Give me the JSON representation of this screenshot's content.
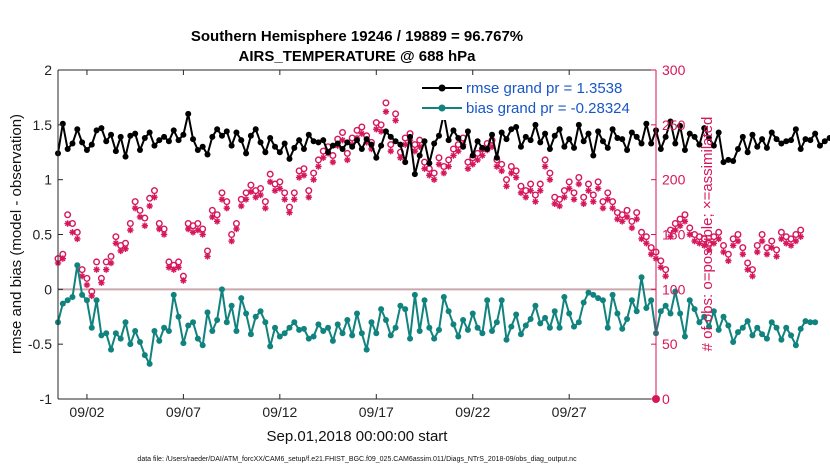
{
  "chart_data": {
    "type": "line",
    "title_lines": [
      "Southern Hemisphere 19246 / 19889 = 96.767%",
      "AIRS_TEMPERATURE @ 688 hPa"
    ],
    "xlabel": "Sep.01,2018 00:00:00 start",
    "ylabel": "rmse and bias (model - observation)",
    "y2label": "# of obs: o=possible; ×=assimilated",
    "footer": "data file: /Users/raeder/DAI/ATM_forcXX/CAM6_setup/f.e21.FHIST_BGC.f09_025.CAM6assim.011/Diags_NTrS_2018-09/obs_diag_output.nc",
    "xlim": [
      0.5,
      31.5
    ],
    "ylim": [
      -1,
      2
    ],
    "y2lim": [
      0,
      300
    ],
    "xticks": [
      2,
      7,
      12,
      17,
      22,
      27
    ],
    "xtick_labels": [
      "09/02",
      "09/07",
      "09/12",
      "09/17",
      "09/22",
      "09/27"
    ],
    "yticks": [
      -1,
      -0.5,
      0,
      0.5,
      1,
      1.5,
      2
    ],
    "ytick_labels": [
      "-1",
      "-0.5",
      "0",
      "0.5",
      "1",
      "1.5",
      "2"
    ],
    "y2ticks": [
      0,
      50,
      100,
      150,
      200,
      250,
      300
    ],
    "y2tick_labels": [
      "0",
      "50",
      "100",
      "150",
      "200",
      "250",
      "300"
    ],
    "legend_position": "top-right",
    "series": [
      {
        "name": "rmse grand pr = 1.3538",
        "color": "#000000",
        "start": 0.5,
        "step": 0.25,
        "values": [
          1.24,
          1.51,
          1.28,
          1.33,
          1.46,
          1.34,
          1.27,
          1.32,
          1.45,
          1.47,
          1.35,
          1.41,
          1.26,
          1.39,
          1.21,
          1.4,
          1.42,
          1.27,
          1.38,
          1.43,
          1.31,
          1.36,
          1.39,
          1.35,
          1.45,
          1.36,
          1.41,
          1.6,
          1.37,
          1.27,
          1.3,
          1.23,
          1.39,
          1.46,
          1.4,
          1.44,
          1.31,
          1.43,
          1.36,
          1.24,
          1.4,
          1.46,
          1.34,
          1.25,
          1.38,
          1.3,
          1.25,
          1.33,
          1.19,
          1.29,
          1.36,
          1.28,
          1.41,
          1.35,
          1.34,
          1.36,
          1.25,
          1.31,
          1.33,
          1.28,
          1.34,
          1.3,
          1.36,
          1.28,
          1.37,
          1.32,
          1.2,
          1.31,
          1.44,
          1.39,
          1.35,
          1.32,
          1.16,
          1.39,
          1.05,
          1.22,
          1.35,
          1.15,
          1.33,
          1.4,
          1.6,
          1.36,
          1.45,
          1.38,
          1.3,
          1.44,
          1.22,
          1.35,
          1.29,
          1.28,
          1.41,
          1.2,
          1.43,
          1.37,
          1.46,
          1.48,
          1.3,
          1.39,
          1.36,
          1.5,
          1.34,
          1.42,
          1.28,
          1.4,
          1.46,
          1.3,
          1.37,
          1.29,
          1.5,
          1.35,
          1.42,
          1.22,
          1.44,
          1.35,
          1.29,
          1.46,
          1.38,
          1.37,
          1.27,
          1.43,
          1.39,
          1.33,
          1.51,
          1.33,
          1.45,
          1.28,
          1.39,
          1.53,
          1.33,
          1.49,
          1.27,
          1.42,
          1.39,
          1.32,
          1.47,
          1.38,
          1.31,
          1.43,
          1.16,
          1.18,
          1.17,
          1.28,
          1.39,
          1.25,
          1.41,
          1.3,
          1.37,
          1.29,
          1.43,
          1.37,
          1.33,
          1.35,
          1.36,
          1.46,
          1.28,
          1.37,
          1.36,
          1.42,
          1.31,
          1.35,
          1.38,
          1.35,
          1.37
        ]
      },
      {
        "name": "bias grand pr = -0.28324",
        "color": "#11837e",
        "start": 0.5,
        "step": 0.25,
        "values": [
          -0.3,
          -0.13,
          -0.1,
          -0.07,
          0.22,
          -0.05,
          -0.1,
          -0.35,
          -0.1,
          -0.42,
          -0.4,
          -0.55,
          -0.4,
          -0.45,
          -0.3,
          -0.5,
          -0.38,
          -0.48,
          -0.6,
          -0.68,
          -0.38,
          -0.47,
          -0.35,
          -0.38,
          -0.05,
          -0.25,
          -0.49,
          -0.33,
          -0.3,
          -0.45,
          -0.51,
          -0.21,
          -0.38,
          -0.28,
          0.0,
          -0.3,
          -0.15,
          -0.38,
          -0.08,
          -0.22,
          -0.41,
          -0.25,
          -0.2,
          -0.3,
          -0.52,
          -0.35,
          -0.43,
          -0.4,
          -0.35,
          -0.3,
          -0.37,
          -0.36,
          -0.45,
          -0.43,
          -0.32,
          -0.38,
          -0.35,
          -0.47,
          -0.32,
          -0.4,
          -0.28,
          -0.42,
          -0.22,
          -0.4,
          -0.55,
          -0.3,
          -0.4,
          -0.18,
          -0.28,
          -0.42,
          -0.35,
          -0.15,
          -0.18,
          -0.45,
          -0.05,
          -0.38,
          -0.1,
          -0.35,
          -0.45,
          -0.37,
          -0.07,
          -0.2,
          -0.32,
          -0.43,
          -0.28,
          -0.37,
          -0.22,
          -0.35,
          -0.4,
          -0.1,
          -0.38,
          -0.3,
          -0.1,
          -0.46,
          -0.34,
          -0.23,
          -0.41,
          -0.33,
          -0.27,
          -0.15,
          -0.31,
          -0.26,
          -0.35,
          -0.2,
          -0.35,
          -0.07,
          -0.22,
          -0.34,
          -0.3,
          -0.12,
          -0.03,
          -0.05,
          -0.08,
          -0.1,
          -0.35,
          -0.05,
          -0.22,
          -0.36,
          -0.27,
          -0.1,
          -0.2,
          0.11,
          -0.17,
          -0.1,
          -0.4,
          -0.2,
          -0.15,
          -0.22,
          -0.02,
          -0.22,
          -0.43,
          -0.1,
          -0.18,
          -0.3,
          -0.25,
          -0.34,
          -0.2,
          -0.37,
          -0.25,
          -0.33,
          -0.48,
          -0.39,
          -0.35,
          -0.29,
          -0.42,
          -0.35,
          -0.41,
          -0.45,
          -0.3,
          -0.35,
          -0.46,
          -0.35,
          -0.42,
          -0.51,
          -0.36,
          -0.29,
          -0.3,
          -0.3
        ]
      }
    ],
    "obs_possible": {
      "name": "# possible",
      "marker": "o",
      "color": "#d6175b",
      "start": 0.5,
      "step": 0.25,
      "values": [
        128,
        132,
        168,
        160,
        152,
        118,
        110,
        98,
        125,
        110,
        125,
        130,
        148,
        140,
        142,
        160,
        180,
        172,
        165,
        183,
        190,
        160,
        155,
        125,
        122,
        125,
        112,
        160,
        158,
        160,
        155,
        135,
        172,
        168,
        188,
        180,
        150,
        160,
        182,
        188,
        195,
        190,
        192,
        180,
        205,
        196,
        198,
        188,
        175,
        188,
        208,
        210,
        190,
        206,
        218,
        226,
        230,
        222,
        237,
        243,
        224,
        238,
        245,
        248,
        240,
        234,
        252,
        250,
        270,
        232,
        260,
        225,
        238,
        242,
        232,
        236,
        216,
        210,
        206,
        220,
        212,
        218,
        228,
        232,
        238,
        216,
        220,
        224,
        228,
        233,
        236,
        218,
        214,
        200,
        212,
        208,
        194,
        190,
        196,
        186,
        196,
        218,
        206,
        184,
        182,
        190,
        198,
        188,
        202,
        184,
        196,
        186,
        198,
        180,
        188,
        180,
        170,
        168,
        172,
        162,
        170,
        152,
        148,
        138,
        134,
        126,
        118,
        154,
        160,
        164,
        168,
        156,
        150,
        148,
        146,
        142,
        148,
        152,
        140,
        132,
        146,
        150,
        138,
        124,
        118,
        140,
        150,
        138,
        144,
        136,
        152,
        148,
        146,
        150,
        154
      ]
    },
    "obs_assimilated": {
      "name": "# assimilated",
      "marker": "*",
      "color": "#d6175b",
      "start": 0.5,
      "step": 0.25,
      "values": [
        124,
        128,
        160,
        152,
        146,
        112,
        104,
        94,
        118,
        106,
        118,
        124,
        142,
        135,
        137,
        154,
        174,
        166,
        158,
        176,
        184,
        155,
        150,
        120,
        118,
        120,
        108,
        155,
        152,
        154,
        150,
        130,
        166,
        162,
        182,
        174,
        144,
        155,
        176,
        182,
        189,
        184,
        186,
        174,
        198,
        190,
        192,
        182,
        170,
        182,
        202,
        204,
        184,
        200,
        212,
        220,
        224,
        216,
        231,
        236,
        218,
        232,
        238,
        242,
        234,
        228,
        246,
        244,
        262,
        226,
        254,
        220,
        232,
        236,
        226,
        230,
        210,
        204,
        200,
        214,
        206,
        212,
        222,
        226,
        232,
        210,
        214,
        218,
        222,
        227,
        230,
        212,
        208,
        194,
        206,
        202,
        188,
        184,
        190,
        180,
        190,
        212,
        200,
        178,
        176,
        184,
        192,
        182,
        196,
        178,
        190,
        180,
        192,
        174,
        182,
        174,
        164,
        162,
        166,
        156,
        164,
        146,
        142,
        132,
        128,
        120,
        112,
        148,
        154,
        158,
        162,
        150,
        144,
        142,
        140,
        136,
        142,
        146,
        134,
        126,
        140,
        144,
        132,
        118,
        112,
        134,
        144,
        132,
        138,
        130,
        146,
        142,
        140,
        144,
        148
      ]
    }
  }
}
